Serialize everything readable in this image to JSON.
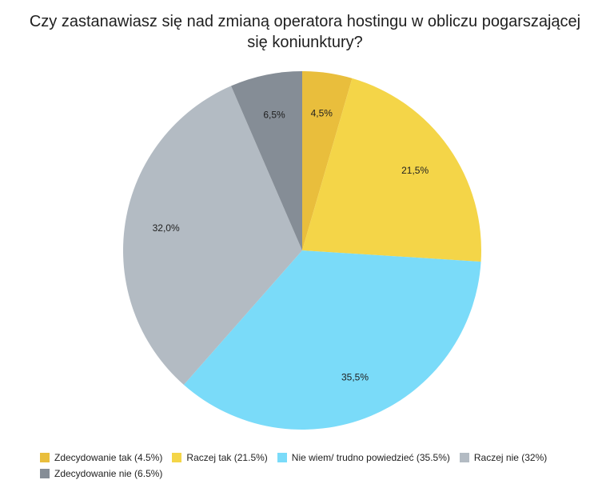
{
  "chart_data": {
    "type": "pie",
    "title_lines": [
      "Czy zastanawiasz się nad zmianą operatora hostingu w obliczu pogarszającej",
      "się koniunktury?"
    ],
    "categories": [
      "Zdecydowanie tak (4.5%)",
      "Raczej tak (21.5%)",
      "Nie wiem/ trudno powiedzieć (35.5%)",
      "Raczej nie (32%)",
      "Zdecydowanie nie (6.5%)"
    ],
    "values": [
      4.5,
      21.5,
      35.5,
      32.0,
      6.5
    ],
    "data_labels": [
      "4,5%",
      "21,5%",
      "35,5%",
      "32,0%",
      "6,5%"
    ],
    "colors": [
      "#E9BE3C",
      "#F4D548",
      "#7ADBF9",
      "#B3BBC3",
      "#858D96"
    ],
    "start_angle": "12 o'clock",
    "direction": "clockwise",
    "legend_position": "bottom"
  }
}
